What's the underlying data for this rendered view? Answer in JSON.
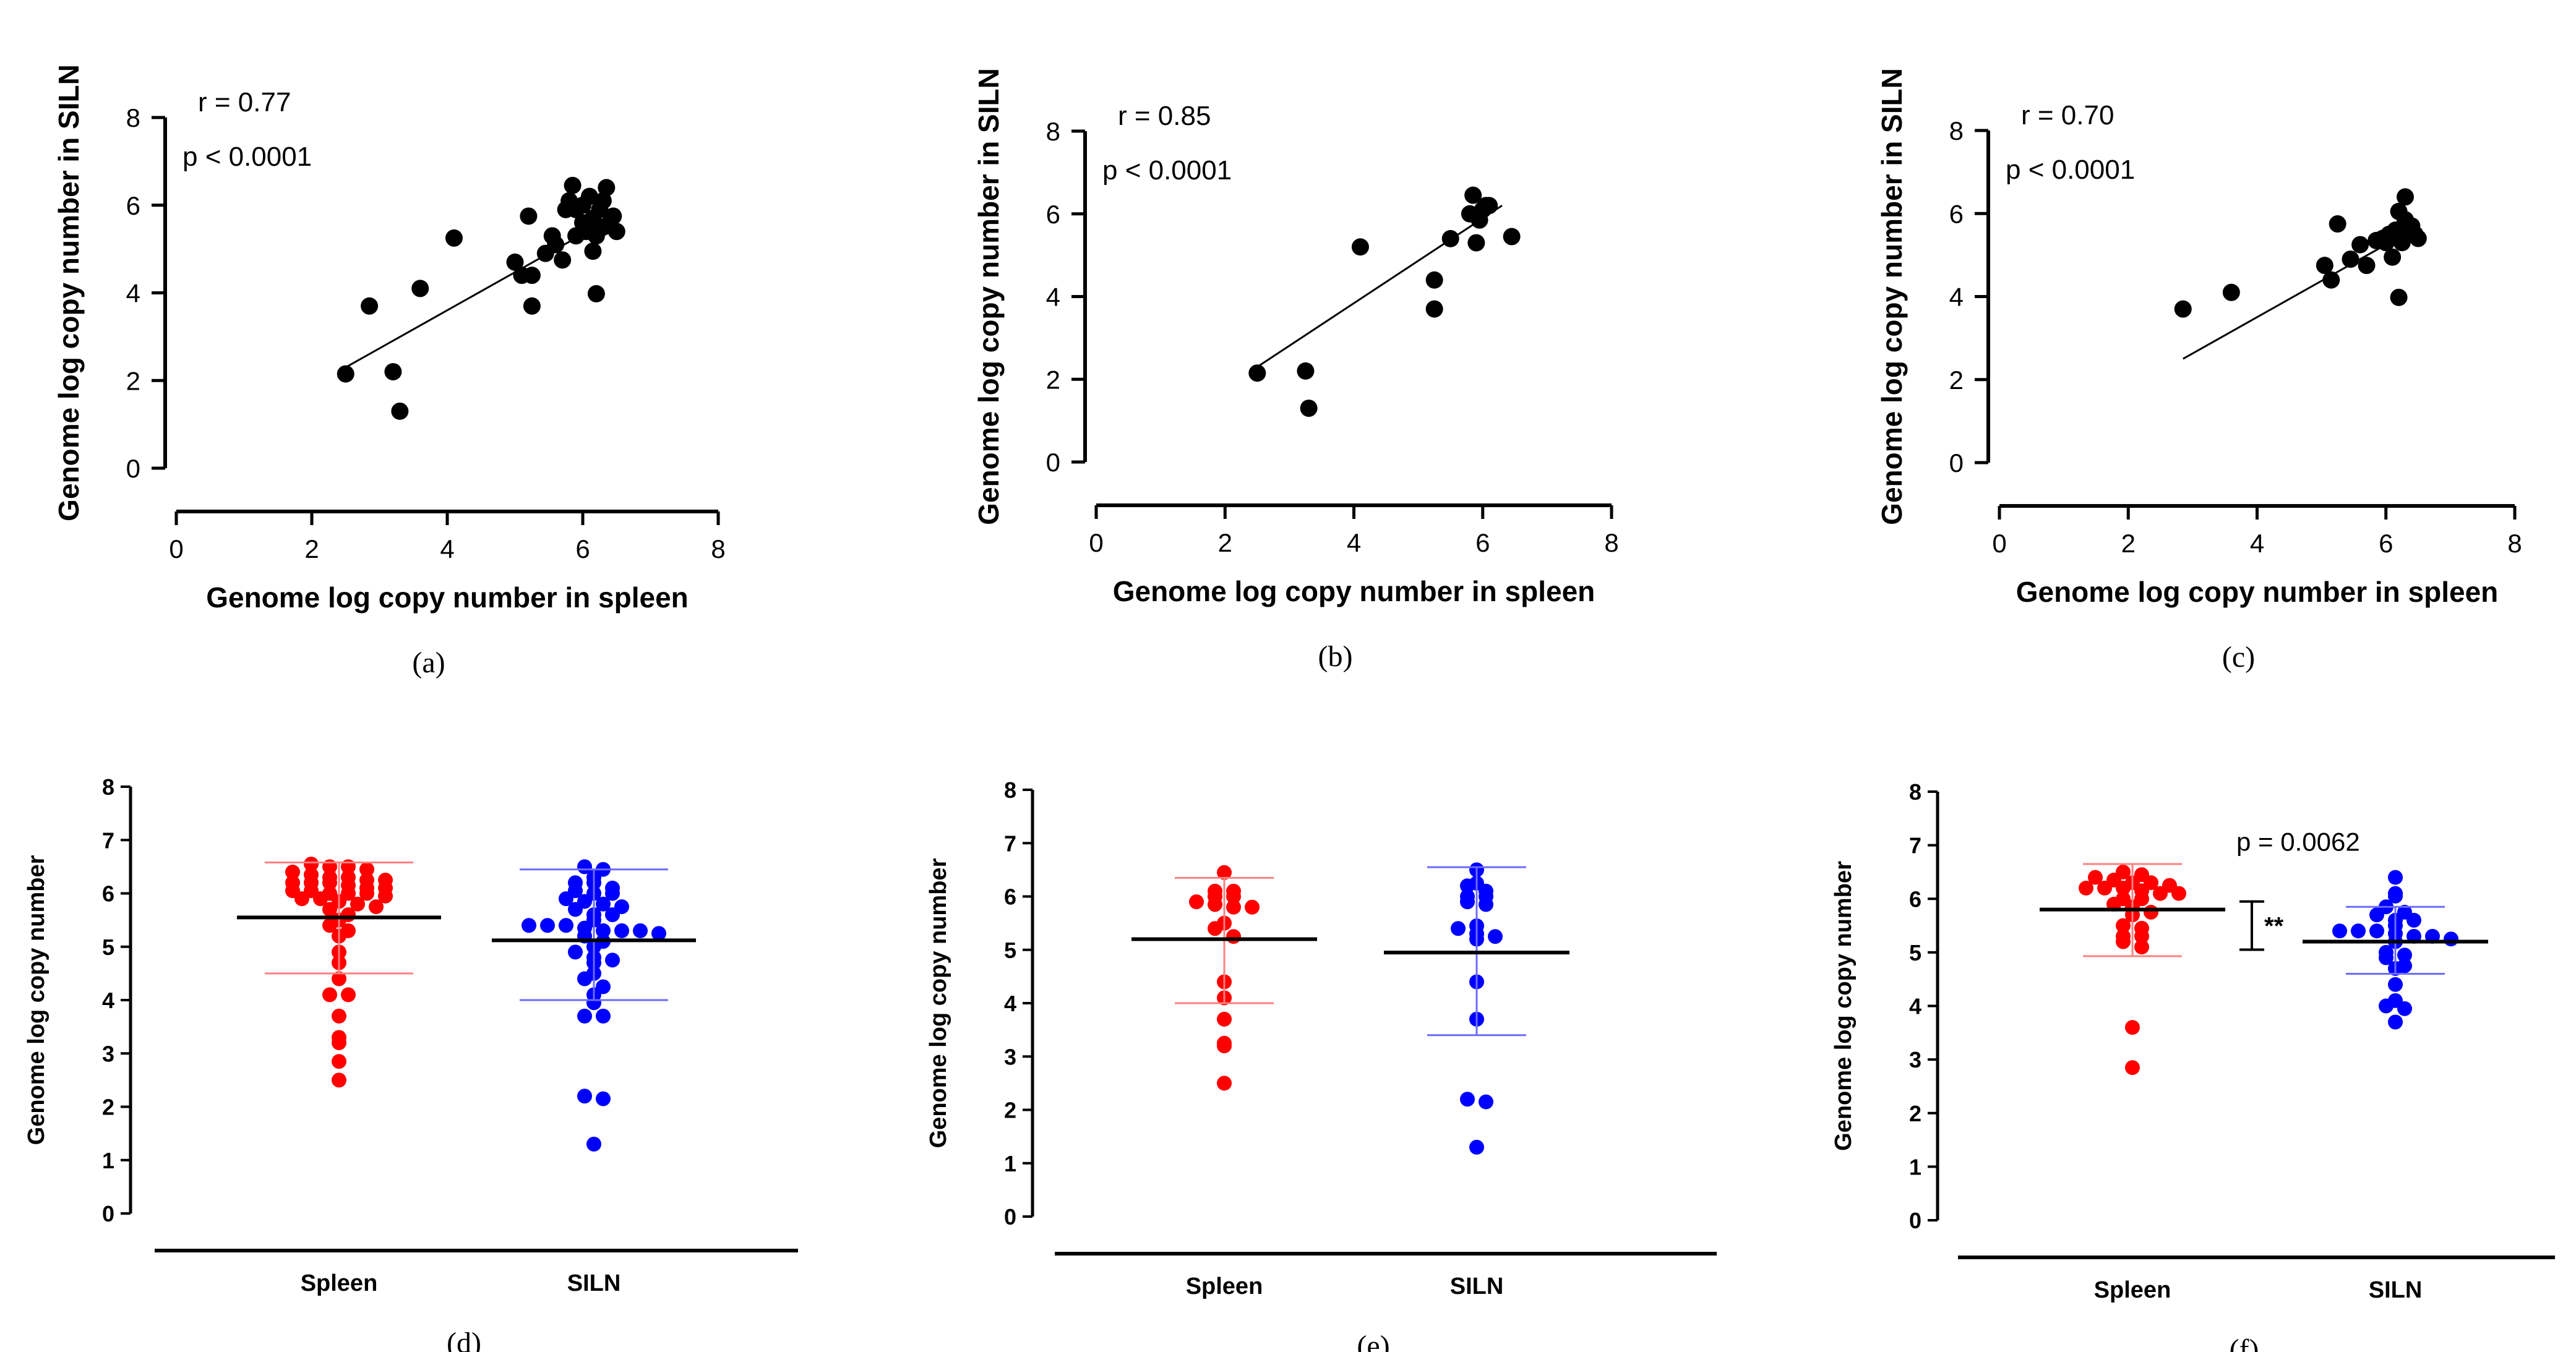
{
  "figure": {
    "colors": {
      "axis": "#000000",
      "spleen": "#ff0000",
      "siln": "#0000ff",
      "scatter_point": "#000000",
      "regression": "#000000",
      "mean_line": "#000000",
      "sd_spleen": "#ff8080",
      "sd_siln": "#6b6bff"
    }
  },
  "chart_data": [
    {
      "id": "a",
      "type": "scatter",
      "panel_label": "(a)",
      "xlabel": "Genome log copy number in spleen",
      "ylabel": "Genome log copy number in SILN",
      "xlim": [
        0,
        8
      ],
      "ylim": [
        0,
        8
      ],
      "xticks": [
        "0",
        "2",
        "4",
        "6",
        "8"
      ],
      "yticks": [
        "0",
        "2",
        "4",
        "6",
        "8"
      ],
      "annotations": [
        "r = 0.77",
        "p < 0.0001"
      ],
      "regression": {
        "x": [
          2.5,
          6.3
        ],
        "y": [
          2.3,
          5.6
        ]
      },
      "points": [
        [
          2.5,
          2.15
        ],
        [
          2.85,
          3.7
        ],
        [
          3.2,
          2.2
        ],
        [
          3.3,
          1.3
        ],
        [
          3.6,
          4.1
        ],
        [
          4.1,
          5.25
        ],
        [
          5.0,
          4.7
        ],
        [
          5.1,
          4.4
        ],
        [
          5.2,
          5.75
        ],
        [
          5.25,
          4.4
        ],
        [
          5.25,
          3.7
        ],
        [
          5.45,
          4.9
        ],
        [
          5.55,
          5.3
        ],
        [
          5.6,
          5.1
        ],
        [
          5.7,
          4.75
        ],
        [
          5.75,
          5.9
        ],
        [
          5.8,
          6.1
        ],
        [
          5.85,
          6.45
        ],
        [
          5.9,
          5.3
        ],
        [
          5.9,
          5.9
        ],
        [
          6.0,
          5.6
        ],
        [
          6.0,
          6.0
        ],
        [
          6.05,
          5.4
        ],
        [
          6.1,
          6.2
        ],
        [
          6.15,
          5.7
        ],
        [
          6.15,
          4.95
        ],
        [
          6.2,
          5.3
        ],
        [
          6.2,
          3.98
        ],
        [
          6.25,
          5.9
        ],
        [
          6.3,
          6.1
        ],
        [
          6.3,
          5.5
        ],
        [
          6.35,
          6.4
        ],
        [
          6.4,
          5.6
        ],
        [
          6.45,
          5.75
        ],
        [
          6.5,
          5.4
        ]
      ]
    },
    {
      "id": "b",
      "type": "scatter",
      "panel_label": "(b)",
      "xlabel": "Genome log copy number in spleen",
      "ylabel": "Genome log copy number in SILN",
      "xlim": [
        0,
        8
      ],
      "ylim": [
        0,
        8
      ],
      "xticks": [
        "0",
        "2",
        "4",
        "6",
        "8"
      ],
      "yticks": [
        "0",
        "2",
        "4",
        "6",
        "8"
      ],
      "annotations": [
        "r = 0.85",
        "p < 0.0001"
      ],
      "regression": {
        "x": [
          2.5,
          6.3
        ],
        "y": [
          2.3,
          6.2
        ]
      },
      "points": [
        [
          2.5,
          2.15
        ],
        [
          3.25,
          2.2
        ],
        [
          3.3,
          1.3
        ],
        [
          4.1,
          5.2
        ],
        [
          5.25,
          4.4
        ],
        [
          5.25,
          3.7
        ],
        [
          5.5,
          5.4
        ],
        [
          5.8,
          6.0
        ],
        [
          5.85,
          6.45
        ],
        [
          5.9,
          5.3
        ],
        [
          5.95,
          5.85
        ],
        [
          6.0,
          6.1
        ],
        [
          6.05,
          6.2
        ],
        [
          6.1,
          6.2
        ],
        [
          6.45,
          5.45
        ]
      ]
    },
    {
      "id": "c",
      "type": "scatter",
      "panel_label": "(c)",
      "xlabel": "Genome log copy number in spleen",
      "ylabel": "Genome log copy number in SILN",
      "xlim": [
        0,
        8
      ],
      "ylim": [
        0,
        8
      ],
      "xticks": [
        "0",
        "2",
        "4",
        "6",
        "8"
      ],
      "yticks": [
        "0",
        "2",
        "4",
        "6",
        "8"
      ],
      "annotations": [
        "r = 0.70",
        "p < 0.0001"
      ],
      "regression": {
        "x": [
          2.85,
          6.4
        ],
        "y": [
          2.5,
          5.6
        ]
      },
      "points": [
        [
          2.85,
          3.7
        ],
        [
          3.6,
          4.1
        ],
        [
          5.05,
          4.75
        ],
        [
          5.15,
          4.4
        ],
        [
          5.25,
          5.75
        ],
        [
          5.45,
          4.9
        ],
        [
          5.6,
          5.25
        ],
        [
          5.7,
          4.75
        ],
        [
          5.85,
          5.35
        ],
        [
          5.95,
          5.4
        ],
        [
          6.0,
          5.3
        ],
        [
          6.05,
          5.5
        ],
        [
          6.1,
          4.95
        ],
        [
          6.15,
          5.6
        ],
        [
          6.2,
          6.05
        ],
        [
          6.2,
          3.98
        ],
        [
          6.25,
          5.3
        ],
        [
          6.3,
          6.4
        ],
        [
          6.3,
          5.85
        ],
        [
          6.35,
          5.5
        ],
        [
          6.4,
          5.7
        ],
        [
          6.45,
          5.5
        ],
        [
          6.5,
          5.4
        ]
      ]
    },
    {
      "id": "d",
      "type": "scatter",
      "panel_label": "(d)",
      "ylabel": "Genome log copy number",
      "ylim": [
        0,
        8
      ],
      "categories": [
        "Spleen",
        "SILN"
      ],
      "yticks": [
        "0",
        "1",
        "2",
        "3",
        "4",
        "5",
        "6",
        "7",
        "8"
      ],
      "series": [
        {
          "name": "Spleen",
          "mean": 5.55,
          "sd_low": 4.5,
          "sd_high": 6.58,
          "values": [
            6.55,
            6.5,
            6.5,
            6.45,
            6.4,
            6.35,
            6.3,
            6.3,
            6.25,
            6.25,
            6.2,
            6.2,
            6.2,
            6.15,
            6.1,
            6.1,
            6.05,
            6.05,
            6.0,
            6.0,
            6.0,
            5.95,
            5.9,
            5.9,
            5.85,
            5.8,
            5.75,
            5.7,
            5.6,
            5.5,
            5.4,
            5.3,
            5.2,
            4.9,
            4.7,
            4.4,
            4.1,
            4.1,
            3.7,
            3.3,
            3.2,
            2.85,
            2.5
          ]
        },
        {
          "name": "SILN",
          "mean": 5.12,
          "sd_low": 4.0,
          "sd_high": 6.45,
          "values": [
            6.5,
            6.45,
            6.3,
            6.2,
            6.2,
            6.1,
            6.05,
            6.0,
            6.0,
            5.9,
            5.85,
            5.8,
            5.75,
            5.7,
            5.6,
            5.6,
            5.5,
            5.4,
            5.4,
            5.4,
            5.35,
            5.3,
            5.3,
            5.3,
            5.25,
            5.2,
            5.1,
            5.0,
            4.9,
            4.8,
            4.75,
            4.7,
            4.5,
            4.4,
            4.25,
            4.1,
            3.95,
            3.7,
            3.7,
            2.2,
            2.15,
            1.3
          ]
        }
      ]
    },
    {
      "id": "e",
      "type": "scatter",
      "panel_label": "(e)",
      "ylabel": "Genome log copy number",
      "ylim": [
        0,
        8
      ],
      "categories": [
        "Spleen",
        "SILN"
      ],
      "yticks": [
        "0",
        "1",
        "2",
        "3",
        "4",
        "5",
        "6",
        "7",
        "8"
      ],
      "series": [
        {
          "name": "Spleen",
          "mean": 5.2,
          "sd_low": 4.0,
          "sd_high": 6.35,
          "values": [
            6.45,
            6.1,
            6.1,
            6.0,
            6.0,
            5.9,
            5.85,
            5.8,
            5.8,
            5.5,
            5.4,
            5.25,
            4.4,
            4.1,
            3.7,
            3.25,
            3.2,
            2.5
          ]
        },
        {
          "name": "SILN",
          "mean": 4.95,
          "sd_low": 3.4,
          "sd_high": 6.55,
          "values": [
            6.5,
            6.25,
            6.2,
            6.1,
            6.0,
            6.0,
            5.9,
            5.85,
            5.45,
            5.4,
            5.3,
            5.25,
            5.2,
            4.4,
            3.7,
            2.2,
            2.15,
            1.3
          ]
        }
      ]
    },
    {
      "id": "f",
      "type": "scatter",
      "panel_label": "(f)",
      "ylabel": "Genome log copy number",
      "ylim": [
        0,
        8
      ],
      "categories": [
        "Spleen",
        "SILN"
      ],
      "yticks": [
        "0",
        "1",
        "2",
        "3",
        "4",
        "5",
        "6",
        "7",
        "8"
      ],
      "annotation": "p = 0.0062",
      "significance": "**",
      "series": [
        {
          "name": "Spleen",
          "mean": 5.8,
          "sd_low": 4.93,
          "sd_high": 6.65,
          "values": [
            6.5,
            6.45,
            6.4,
            6.35,
            6.3,
            6.3,
            6.25,
            6.2,
            6.2,
            6.2,
            6.15,
            6.1,
            6.1,
            6.0,
            6.0,
            5.9,
            5.85,
            5.75,
            5.7,
            5.5,
            5.45,
            5.3,
            5.3,
            5.2,
            5.1,
            3.6,
            2.85
          ]
        },
        {
          "name": "SILN",
          "mean": 5.2,
          "sd_low": 4.6,
          "sd_high": 5.85,
          "values": [
            6.4,
            6.1,
            6.05,
            5.85,
            5.75,
            5.7,
            5.6,
            5.6,
            5.5,
            5.4,
            5.4,
            5.4,
            5.35,
            5.3,
            5.3,
            5.25,
            5.2,
            5.0,
            4.95,
            4.9,
            4.75,
            4.7,
            4.4,
            4.1,
            4.0,
            3.95,
            3.7
          ]
        }
      ]
    }
  ]
}
